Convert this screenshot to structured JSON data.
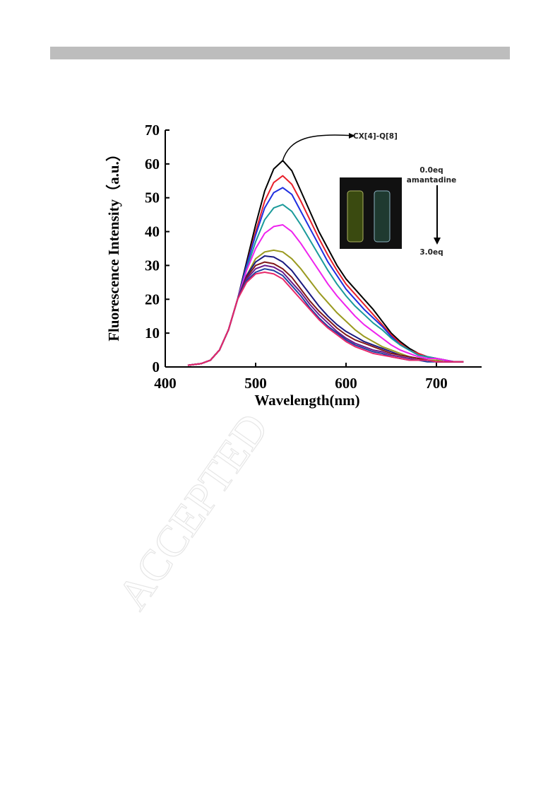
{
  "watermark": "ACCEPTED",
  "chart_data": {
    "type": "line",
    "xlabel": "Wavelength(nm)",
    "ylabel": "Fluorescence Intensity（a.u.）",
    "annotations": [
      "CX[4]-Q[8]",
      "0.0eq",
      "amantadine",
      "3.0eq"
    ],
    "xlim": [
      400,
      750
    ],
    "ylim": [
      0,
      70
    ],
    "xticks": [
      400,
      500,
      600,
      700
    ],
    "yticks": [
      0,
      10,
      20,
      30,
      40,
      50,
      60,
      70
    ],
    "x": [
      425,
      440,
      450,
      460,
      470,
      480,
      490,
      500,
      510,
      520,
      530,
      540,
      550,
      560,
      570,
      580,
      590,
      600,
      610,
      620,
      630,
      640,
      650,
      660,
      670,
      680,
      690,
      700,
      710,
      720,
      730
    ],
    "series": [
      {
        "color": "#000000",
        "values": [
          0.5,
          1,
          2,
          5,
          11,
          20,
          31,
          42,
          52,
          58.5,
          61,
          58,
          52,
          46,
          40,
          35,
          30,
          26,
          23,
          20,
          17,
          13.5,
          10,
          7.5,
          5.5,
          4,
          3,
          2.5,
          2,
          1.5,
          1.5
        ]
      },
      {
        "color": "#e8202a",
        "values": [
          0.5,
          1,
          2,
          5,
          11,
          20,
          30,
          40,
          49,
          54.5,
          56.5,
          54,
          49,
          43.5,
          38,
          33,
          28.5,
          24.5,
          21.5,
          18.5,
          15.5,
          12.5,
          9.5,
          7,
          5,
          4,
          3,
          2.5,
          2,
          1.5,
          1.5
        ]
      },
      {
        "color": "#1f2fe0",
        "values": [
          0.5,
          1,
          2,
          5,
          11,
          20,
          30,
          39,
          47,
          51.5,
          53,
          51,
          46,
          41,
          36,
          31,
          27,
          23,
          20,
          17,
          14.5,
          12,
          9,
          6.5,
          5,
          3.5,
          3,
          2.5,
          2,
          1.5,
          1.5
        ]
      },
      {
        "color": "#1a9a9a",
        "values": [
          0.5,
          1,
          2,
          5,
          11,
          20,
          29,
          37,
          43.5,
          47,
          48,
          46,
          42,
          37.5,
          33,
          28.5,
          24.5,
          21,
          18,
          15.5,
          13,
          11,
          8.5,
          6.5,
          5,
          3.5,
          3,
          2.5,
          2,
          1.5,
          1.5
        ]
      },
      {
        "color": "#ee22ee",
        "values": [
          0.5,
          1,
          2,
          5,
          11,
          20,
          28.5,
          35,
          39.5,
          41.5,
          42,
          40,
          36.5,
          32.5,
          28.5,
          24.5,
          21,
          18,
          15,
          12.5,
          10.5,
          8.5,
          6.5,
          5,
          4,
          3,
          2.5,
          2.5,
          2,
          1.5,
          1.5
        ]
      },
      {
        "color": "#9a9a20",
        "values": [
          0.5,
          1,
          2,
          5,
          11,
          20,
          27,
          32,
          34,
          34.5,
          34,
          32,
          29,
          25.5,
          22,
          19,
          16,
          13.5,
          11,
          9,
          7.5,
          6,
          5,
          4,
          3,
          2.5,
          2,
          2,
          1.5,
          1.5,
          1.5
        ]
      },
      {
        "color": "#1a1a80",
        "values": [
          0.5,
          1,
          2,
          5,
          11,
          20,
          27,
          31,
          32.8,
          32.5,
          31,
          28.5,
          25,
          21.5,
          18,
          15,
          12.5,
          10.5,
          9,
          7.5,
          6.5,
          5.5,
          4.5,
          3.5,
          3,
          2.5,
          2,
          1.5,
          1.5,
          1.5,
          1.5
        ]
      },
      {
        "color": "#801818",
        "values": [
          0.5,
          1,
          2,
          5,
          11,
          20,
          26.5,
          30,
          31,
          30.5,
          29,
          26.5,
          23,
          19.5,
          16.5,
          14,
          11.5,
          9.5,
          8,
          7,
          6,
          5,
          4,
          3.5,
          3,
          2.5,
          2,
          1.5,
          1.5,
          1.5,
          1.5
        ]
      },
      {
        "color": "#6a1a8a",
        "values": [
          0.5,
          1,
          2,
          5,
          11,
          20,
          26,
          29,
          30,
          29.5,
          28,
          25,
          22,
          18.5,
          15.5,
          13,
          10.5,
          8.5,
          7,
          6,
          5,
          4.5,
          3.5,
          3,
          2.5,
          2,
          2,
          1.5,
          1.5,
          1.5,
          1.5
        ]
      },
      {
        "color": "#2040a0",
        "values": [
          0.5,
          1,
          2,
          5,
          11,
          20,
          25.5,
          28,
          29,
          28.5,
          27,
          24,
          21,
          17.5,
          14.5,
          12,
          10,
          8,
          6.5,
          5.5,
          4.5,
          4,
          3,
          2.5,
          2,
          2,
          1.5,
          1.5,
          1.5,
          1.5,
          1.5
        ]
      },
      {
        "color": "#e8286a",
        "values": [
          0.5,
          1,
          2,
          5,
          11,
          20,
          25,
          27.5,
          28,
          27.5,
          26,
          23,
          20,
          17,
          14,
          11.5,
          9.5,
          7.5,
          6,
          5,
          4,
          3.5,
          3,
          2.5,
          2,
          2,
          2,
          1.5,
          1.5,
          1.5,
          1.5
        ]
      }
    ]
  }
}
